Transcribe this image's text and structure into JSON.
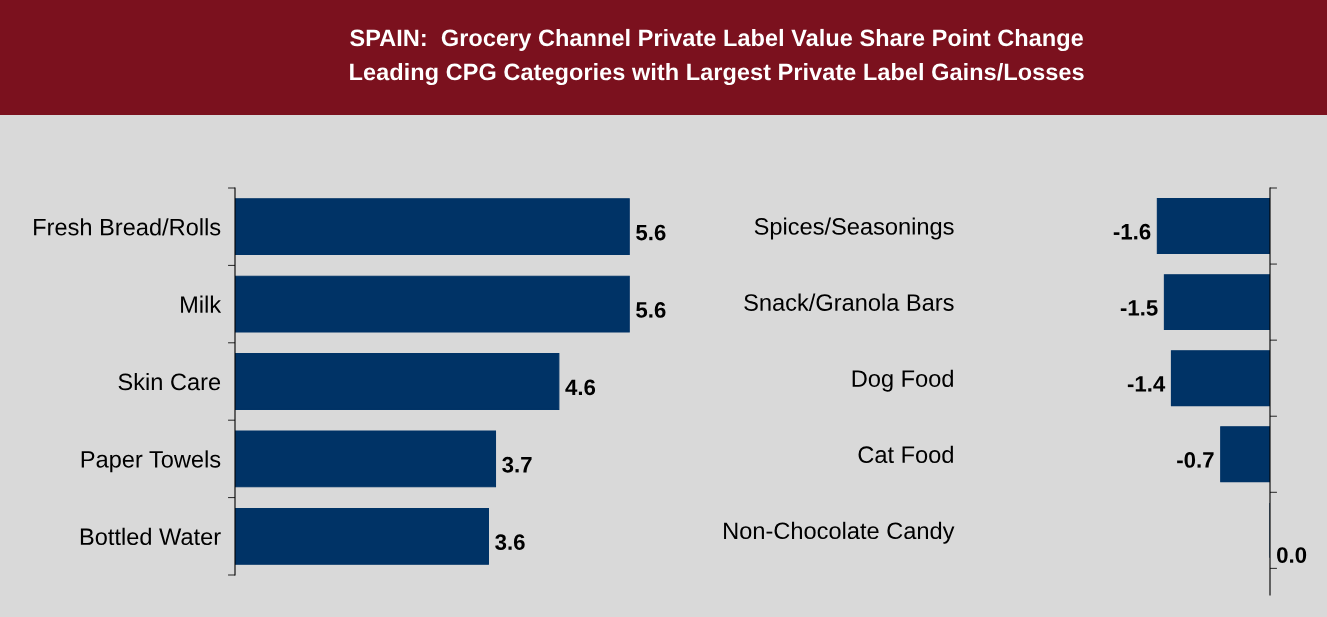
{
  "chart_data": [
    {
      "type": "bar",
      "orientation": "horizontal",
      "title": "SPAIN:  Grocery Channel Private Label Value Share Point Change\nLeading CPG Categories with Largest Private Label Gains/Losses",
      "categories": [
        "Fresh Bread/Rolls",
        "Milk",
        "Skin Care",
        "Paper Towels",
        "Bottled Water"
      ],
      "values": [
        5.6,
        5.6,
        4.6,
        3.7,
        3.6
      ],
      "value_labels": [
        "5.6",
        "5.6",
        "4.6",
        "3.7",
        "3.6"
      ],
      "color": "#003366",
      "legend": false,
      "grid": false
    },
    {
      "type": "bar",
      "orientation": "horizontal",
      "categories": [
        "Spices/Seasonings",
        "Snack/Granola Bars",
        "Dog Food",
        "Cat Food",
        "Non-Chocolate Candy"
      ],
      "values": [
        -1.6,
        -1.5,
        -1.4,
        -0.7,
        0.0
      ],
      "value_labels": [
        "-1.6",
        "-1.5",
        "-1.4",
        "-0.7",
        "0.0"
      ],
      "color": "#003366",
      "legend": false,
      "grid": false
    }
  ]
}
